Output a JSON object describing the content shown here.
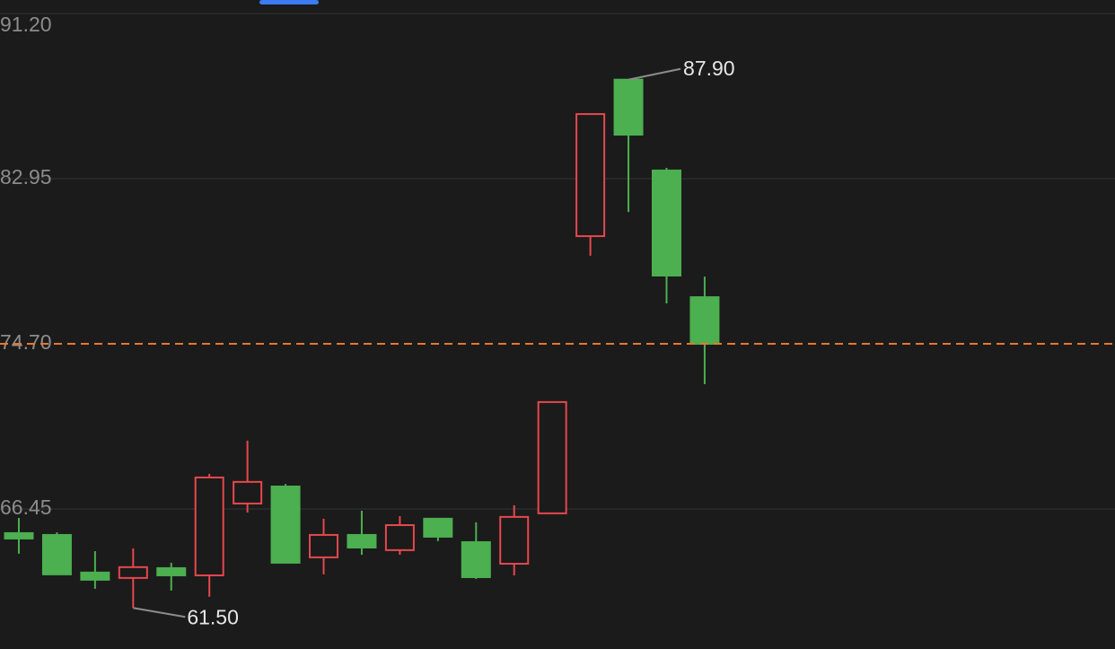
{
  "chart_data": {
    "type": "candlestick",
    "categories": [
      null,
      null,
      null,
      null,
      null,
      null,
      null,
      null,
      null,
      null,
      null,
      null,
      null,
      null,
      null,
      null,
      null,
      null,
      null
    ],
    "open": [
      65.24,
      65.15,
      63.27,
      63.0,
      63.49,
      63.13,
      66.72,
      67.57,
      64.03,
      65.15,
      64.39,
      65.96,
      64.79,
      63.71,
      66.23,
      80.08,
      87.9,
      83.36,
      77.03
    ],
    "close": [
      64.97,
      63.18,
      62.91,
      63.54,
      63.13,
      68.02,
      67.8,
      63.76,
      65.15,
      64.52,
      65.64,
      65.06,
      63.04,
      66.05,
      71.79,
      86.18,
      85.15,
      78.11,
      74.7
    ],
    "high": [
      66.0,
      65.28,
      64.34,
      64.48,
      63.76,
      68.2,
      69.86,
      67.7,
      65.96,
      66.36,
      66.09,
      65.96,
      65.78,
      66.63,
      71.79,
      86.18,
      87.9,
      83.49,
      78.06
    ],
    "low": [
      64.21,
      63.18,
      62.46,
      61.5,
      62.37,
      62.06,
      66.27,
      63.76,
      63.18,
      64.16,
      64.16,
      64.84,
      62.95,
      63.13,
      66.23,
      79.1,
      81.29,
      76.72,
      72.68
    ],
    "up_color": "#e5484d",
    "down_color": "#4caf50",
    "ylim": [
      59.45,
      91.88
    ],
    "yticks": [
      {
        "value": 91.2,
        "label": "91.20"
      },
      82.95,
      {
        "value": 74.7,
        "label": "74.70"
      },
      66.45
    ],
    "grid": true,
    "last_price_line": {
      "color": "#e8772e",
      "dashed": true
    },
    "max_label": "87.90",
    "min_label": "61.50"
  }
}
